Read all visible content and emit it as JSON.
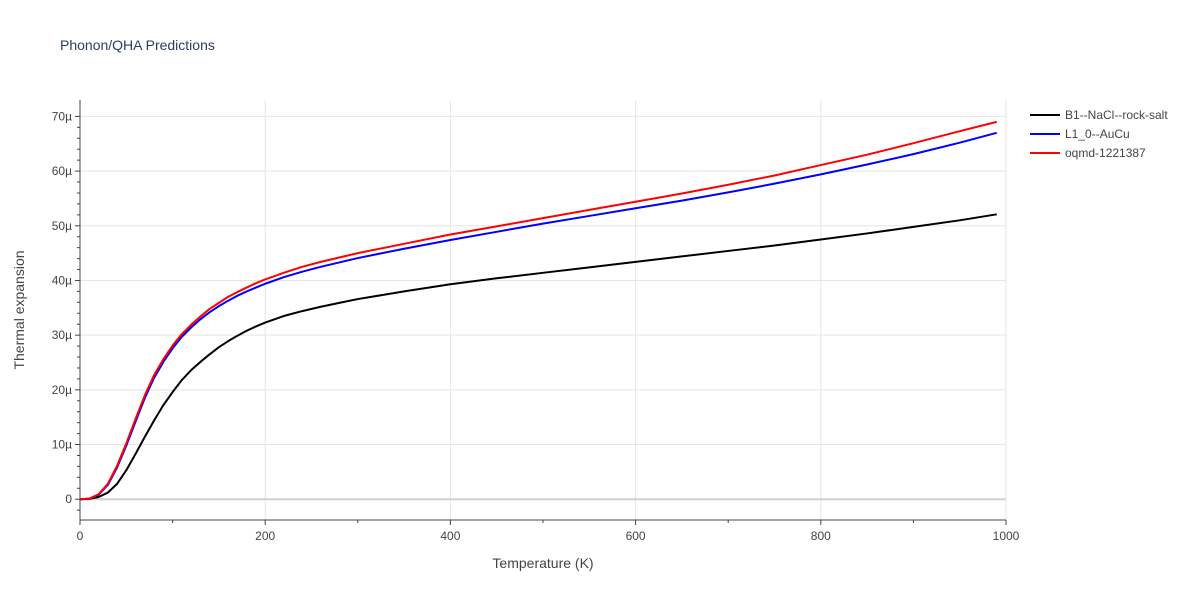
{
  "chart_data": {
    "type": "line",
    "title": "Phonon/QHA Predictions",
    "xlabel": "Temperature (K)",
    "ylabel": "Thermal expansion",
    "xlim": [
      0,
      1000
    ],
    "ylim": [
      -3.8,
      73
    ],
    "xticks": [
      0,
      200,
      400,
      600,
      800,
      1000
    ],
    "xtick_labels": [
      "0",
      "200",
      "400",
      "600",
      "800",
      "1000"
    ],
    "yticks": [
      0,
      10,
      20,
      30,
      40,
      50,
      60,
      70
    ],
    "ytick_labels": [
      "0",
      "10µ",
      "20µ",
      "30µ",
      "40µ",
      "50µ",
      "60µ",
      "70µ"
    ],
    "grid": true,
    "legend_position": "top-right",
    "series": [
      {
        "name": "B1--NaCl--rock-salt",
        "color": "#000000",
        "x": [
          0,
          10,
          20,
          30,
          40,
          50,
          60,
          70,
          80,
          90,
          100,
          110,
          120,
          130,
          140,
          150,
          160,
          170,
          180,
          190,
          200,
          220,
          240,
          260,
          280,
          300,
          350,
          400,
          450,
          500,
          550,
          600,
          650,
          700,
          750,
          800,
          850,
          900,
          950,
          990
        ],
        "values": [
          0,
          0.05,
          0.4,
          1.2,
          2.8,
          5.3,
          8.3,
          11.4,
          14.4,
          17.2,
          19.6,
          21.8,
          23.6,
          25.1,
          26.5,
          27.8,
          28.9,
          29.9,
          30.8,
          31.6,
          32.3,
          33.5,
          34.4,
          35.2,
          35.9,
          36.6,
          38.0,
          39.3,
          40.4,
          41.4,
          42.4,
          43.4,
          44.4,
          45.4,
          46.4,
          47.5,
          48.6,
          49.8,
          51.0,
          52.1
        ]
      },
      {
        "name": "L1_0--AuCu",
        "color": "#0000ff",
        "x": [
          0,
          10,
          20,
          30,
          40,
          50,
          60,
          70,
          80,
          90,
          100,
          110,
          120,
          130,
          140,
          150,
          160,
          170,
          180,
          190,
          200,
          220,
          240,
          260,
          280,
          300,
          350,
          400,
          450,
          500,
          550,
          600,
          650,
          700,
          750,
          800,
          850,
          900,
          950,
          990
        ],
        "values": [
          0,
          0.1,
          0.8,
          2.6,
          5.8,
          9.8,
          14.2,
          18.5,
          22.2,
          25.1,
          27.6,
          29.7,
          31.4,
          32.9,
          34.2,
          35.3,
          36.3,
          37.2,
          38.0,
          38.7,
          39.4,
          40.6,
          41.6,
          42.5,
          43.3,
          44.1,
          45.8,
          47.4,
          48.9,
          50.4,
          51.8,
          53.2,
          54.6,
          56.1,
          57.7,
          59.4,
          61.2,
          63.1,
          65.2,
          67.0
        ]
      },
      {
        "name": "oqmd-1221387",
        "color": "#ff0000",
        "x": [
          0,
          10,
          20,
          30,
          40,
          50,
          60,
          70,
          80,
          90,
          100,
          110,
          120,
          130,
          140,
          150,
          160,
          170,
          180,
          190,
          200,
          220,
          240,
          260,
          280,
          300,
          350,
          400,
          450,
          500,
          550,
          600,
          650,
          700,
          750,
          800,
          850,
          900,
          950,
          990
        ],
        "values": [
          0,
          0.1,
          0.9,
          2.8,
          6.1,
          10.2,
          14.7,
          19.0,
          22.7,
          25.6,
          28.1,
          30.2,
          31.9,
          33.4,
          34.8,
          35.9,
          37.0,
          37.9,
          38.7,
          39.5,
          40.2,
          41.4,
          42.5,
          43.4,
          44.2,
          45.0,
          46.7,
          48.4,
          49.9,
          51.4,
          52.9,
          54.4,
          55.9,
          57.5,
          59.2,
          61.1,
          63.0,
          65.1,
          67.3,
          69.0
        ]
      }
    ]
  }
}
